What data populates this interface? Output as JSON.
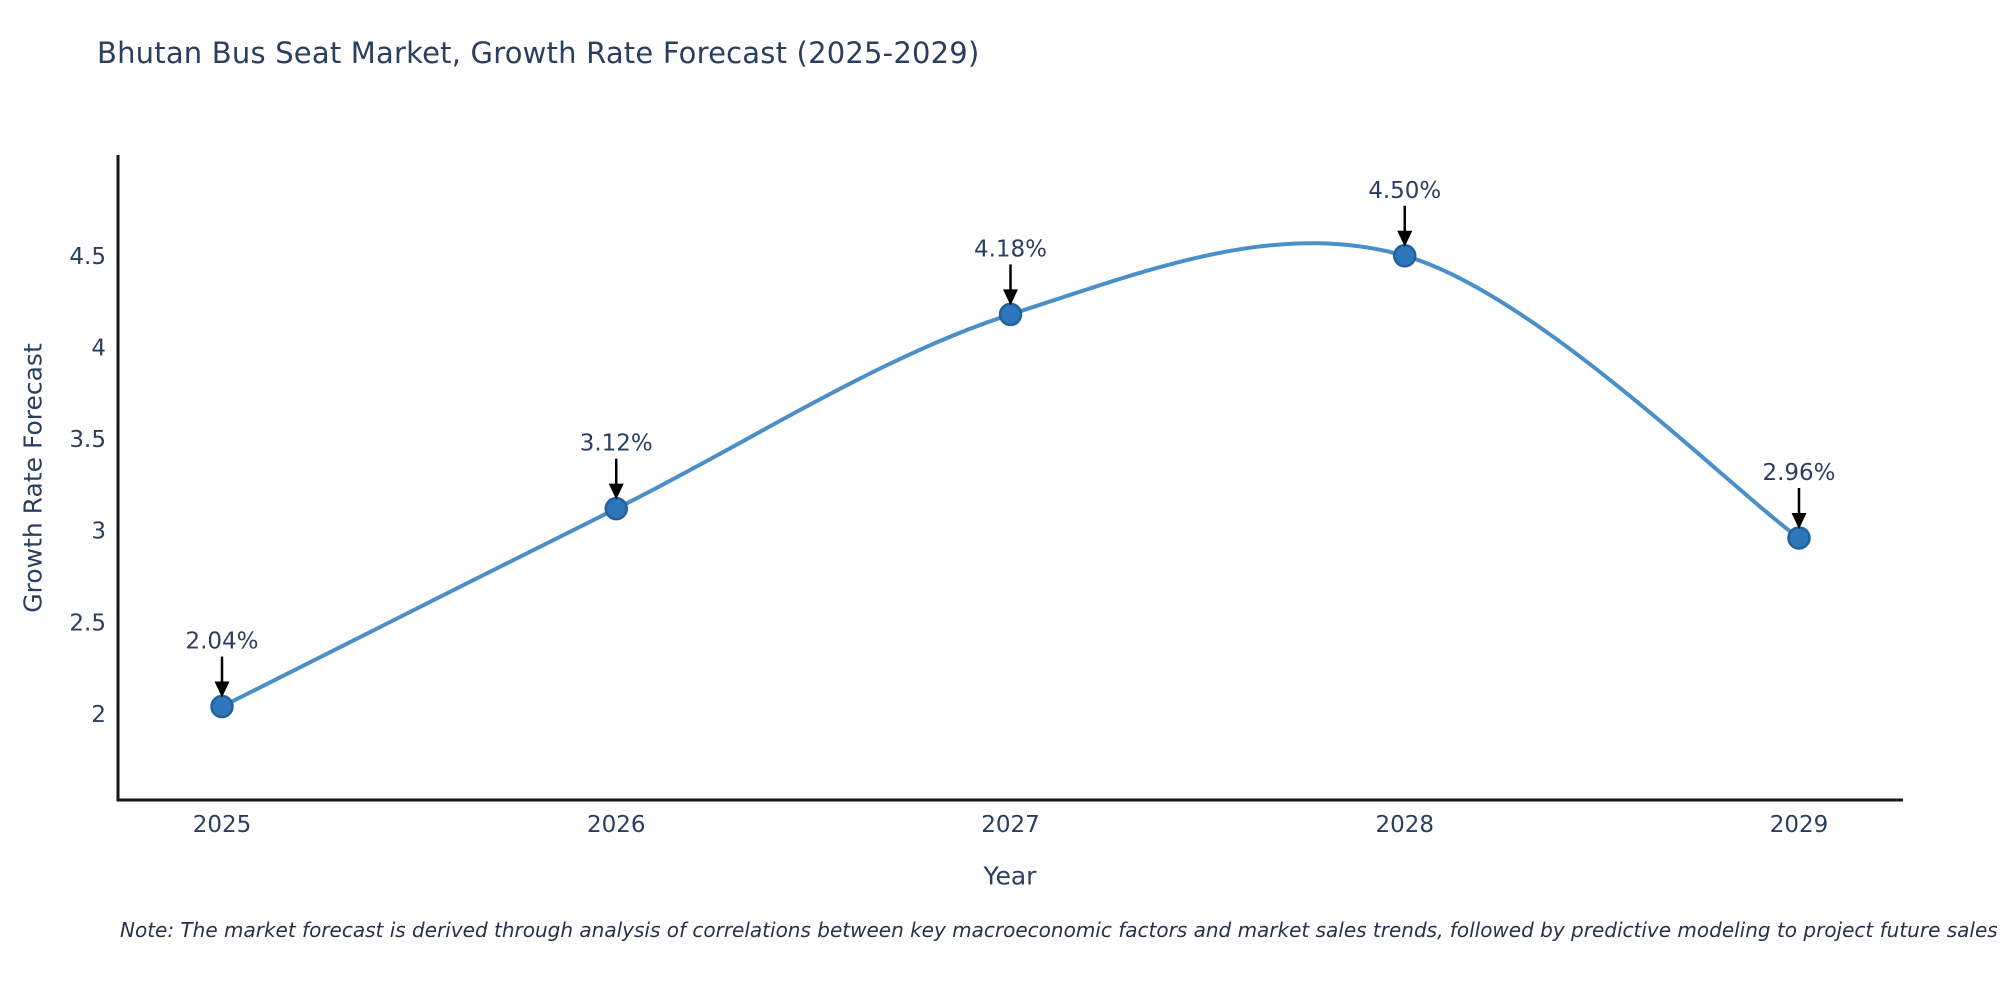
{
  "page": {
    "background": "#ffffff"
  },
  "chart": {
    "note": "Note: The market forecast is derived through analysis of correlations between key macroeconomic factors and market sales trends, followed by predictive modeling to project future sales",
    "colors": {
      "line": "#4a8fc7",
      "marker_fill": "#2e76ba",
      "marker_edge": "#24619c",
      "axis_line": "#14161c",
      "text": "#2a3f5f",
      "annotation_arrow": "#000000"
    }
  },
  "chart_data": {
    "type": "line",
    "title": "Bhutan Bus Seat Market, Growth Rate Forecast (2025-2029)",
    "categories": [
      "2025",
      "2026",
      "2027",
      "2028",
      "2029"
    ],
    "values": [
      2.04,
      3.12,
      4.18,
      4.5,
      2.96
    ],
    "data_labels": [
      "2.04%",
      "3.12%",
      "4.18%",
      "4.50%",
      "2.96%"
    ],
    "xlabel": "Year",
    "ylabel": "Growth Rate Forecast",
    "yticks": [
      2,
      2.5,
      3,
      3.5,
      4,
      4.5
    ],
    "ylim": [
      1.53,
      5.05
    ],
    "grid": false,
    "legend": "none",
    "line_shape": "spline",
    "markers": true,
    "annotations_arrow": true
  }
}
